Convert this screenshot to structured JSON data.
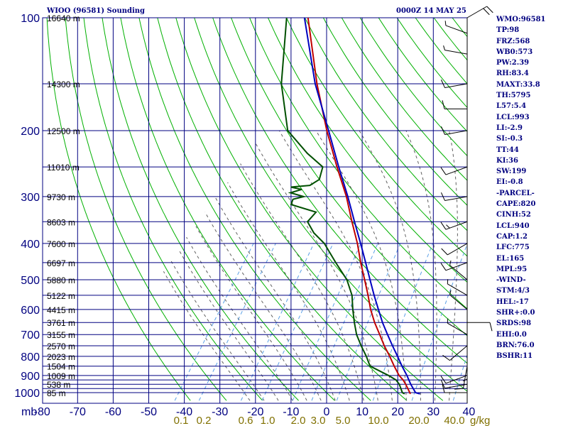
{
  "header": {
    "station": "WIOO (96581) Sounding",
    "time": "0000Z 14 MAY 25"
  },
  "stats": [
    "WMO:96581",
    "TP:98",
    "FRZ:568",
    "WB0:573",
    "PW:2.39",
    "RH:83.4",
    "MAXT:33.8",
    "TH:5795",
    "L57:5.4",
    "LCL:993",
    "LI:-2.9",
    "SI:-0.3",
    "TT:44",
    "KI:36",
    "SW:199",
    "EI:-0.8",
    "-PARCEL-",
    "CAPE:820",
    "CINH:52",
    "LCL:940",
    "CAP:1.2",
    "LFC:775",
    "EL:165",
    "MPL:95",
    "-WIND-",
    "STM:4/3",
    "HEL:-17",
    "SHR+:0.0",
    "SRDS:98",
    "EHI:0.0",
    "BRN:76.0",
    "BSHR:11"
  ],
  "colors": {
    "grid": "#000080",
    "dry_adiabat": "#00b000",
    "moist_adiabat": "#606060",
    "mixing_ratio": "#5aa0e6",
    "temperature": "#c00000",
    "dewpoint": "#005000",
    "parcel": "#0000c0",
    "label": "#000080",
    "mix_label": "#807000"
  },
  "chart_data": {
    "type": "line",
    "subtype": "skew-T log-P sounding",
    "x_axis": {
      "unit_label": "mb",
      "temperature_ticks": [
        -80,
        -70,
        -60,
        -50,
        -40,
        -30,
        -20,
        -10,
        0,
        10,
        20,
        30,
        40
      ],
      "temperature_labels": [
        "-80",
        "-70",
        "-60",
        "-50",
        "-40",
        "-30",
        "-20",
        "-10",
        "0",
        "10",
        "20",
        "30",
        "40"
      ],
      "range": [
        -80,
        40
      ]
    },
    "y_axis": {
      "scale": "log",
      "range_hPa": [
        1050,
        100
      ],
      "pressure_ticks": [
        100,
        200,
        300,
        400,
        500,
        600,
        700,
        800,
        900,
        1000
      ],
      "pressure_labels": [
        "100",
        "200",
        "300",
        "400",
        "500",
        "600",
        "700",
        "800",
        "900",
        "1000"
      ],
      "minor_levels": [
        150,
        250,
        350,
        450,
        550,
        650,
        750,
        850,
        925,
        950,
        975
      ]
    },
    "height_labels": [
      {
        "p": 100,
        "text": "16640 m"
      },
      {
        "p": 150,
        "text": "14300 m"
      },
      {
        "p": 200,
        "text": "12500 m"
      },
      {
        "p": 250,
        "text": "11010 m"
      },
      {
        "p": 300,
        "text": "9730 m"
      },
      {
        "p": 350,
        "text": "8603 m"
      },
      {
        "p": 400,
        "text": "7600 m"
      },
      {
        "p": 450,
        "text": "6697 m"
      },
      {
        "p": 500,
        "text": "5880 m"
      },
      {
        "p": 550,
        "text": "5122 m"
      },
      {
        "p": 600,
        "text": "4415 m"
      },
      {
        "p": 650,
        "text": "3761 m"
      },
      {
        "p": 700,
        "text": "3155 m"
      },
      {
        "p": 750,
        "text": "2570 m"
      },
      {
        "p": 800,
        "text": "2023 m"
      },
      {
        "p": 850,
        "text": "1504 m"
      },
      {
        "p": 900,
        "text": "1009 m"
      },
      {
        "p": 950,
        "text": "538 m"
      },
      {
        "p": 1000,
        "text": "85 m"
      }
    ],
    "mixing_ratio_labels": [
      "0.1",
      "0.2",
      "0.6",
      "1.0",
      "2.0",
      "3.0",
      "5.0",
      "10.0",
      "20.0",
      "40.0"
    ],
    "mixing_ratio_values": [
      0.1,
      0.2,
      0.6,
      1.0,
      2.0,
      3.0,
      5.0,
      10.0,
      20.0,
      40.0
    ],
    "mixing_ratio_unit": "g/kg",
    "series": [
      {
        "key": "temperature",
        "points": [
          [
            1008,
            23.8
          ],
          [
            1000,
            23.4
          ],
          [
            950,
            20.6
          ],
          [
            925,
            19.0
          ],
          [
            900,
            17.0
          ],
          [
            850,
            13.8
          ],
          [
            800,
            10.6
          ],
          [
            750,
            7.0
          ],
          [
            700,
            3.5
          ],
          [
            650,
            -0.3
          ],
          [
            600,
            -4.0
          ],
          [
            550,
            -7.5
          ],
          [
            500,
            -11.5
          ],
          [
            450,
            -16.0
          ],
          [
            400,
            -20.7
          ],
          [
            350,
            -26.5
          ],
          [
            300,
            -33.0
          ],
          [
            250,
            -41.5
          ],
          [
            200,
            -51.5
          ],
          [
            150,
            -63.5
          ],
          [
            100,
            -79.0
          ]
        ]
      },
      {
        "key": "dewpoint",
        "points": [
          [
            1008,
            22.2
          ],
          [
            1000,
            21.3
          ],
          [
            950,
            18.8
          ],
          [
            925,
            17.0
          ],
          [
            900,
            14.0
          ],
          [
            850,
            7.0
          ],
          [
            800,
            4.0
          ],
          [
            750,
            0.5
          ],
          [
            700,
            -3.0
          ],
          [
            650,
            -6.0
          ],
          [
            600,
            -9.0
          ],
          [
            550,
            -12.0
          ],
          [
            500,
            -16.5
          ],
          [
            450,
            -23.0
          ],
          [
            400,
            -30.0
          ],
          [
            375,
            -35.0
          ],
          [
            350,
            -39.0
          ],
          [
            330,
            -38.5
          ],
          [
            315,
            -47.0
          ],
          [
            305,
            -47.5
          ],
          [
            300,
            -45.0
          ],
          [
            293,
            -49.5
          ],
          [
            287,
            -47.0
          ],
          [
            283,
            -50.5
          ],
          [
            280,
            -45.5
          ],
          [
            270,
            -44.0
          ],
          [
            250,
            -45.5
          ],
          [
            230,
            -52.5
          ],
          [
            200,
            -62.5
          ],
          [
            150,
            -73.5
          ],
          [
            100,
            -85.0
          ]
        ]
      },
      {
        "key": "parcel",
        "points": [
          [
            1008,
            26.5
          ],
          [
            1000,
            25.0
          ],
          [
            950,
            22.0
          ],
          [
            900,
            19.2
          ],
          [
            850,
            16.0
          ],
          [
            800,
            12.8
          ],
          [
            750,
            9.3
          ],
          [
            700,
            5.7
          ],
          [
            650,
            1.9
          ],
          [
            600,
            -1.8
          ],
          [
            550,
            -5.8
          ],
          [
            500,
            -10.0
          ],
          [
            450,
            -14.6
          ],
          [
            400,
            -19.8
          ],
          [
            350,
            -25.8
          ],
          [
            300,
            -32.6
          ],
          [
            250,
            -41.0
          ],
          [
            200,
            -51.0
          ],
          [
            150,
            -64.0
          ],
          [
            100,
            -80.0
          ]
        ]
      }
    ],
    "wind_barbs": [
      {
        "p": 1000,
        "dir": 270,
        "kt": 10
      },
      {
        "p": 950,
        "dir": 260,
        "kt": 10
      },
      {
        "p": 900,
        "dir": 250,
        "kt": 10
      },
      {
        "p": 850,
        "dir": 190,
        "kt": 10
      },
      {
        "p": 800,
        "dir": 180,
        "kt": 5
      },
      {
        "p": 750,
        "dir": 230,
        "kt": 10
      },
      {
        "p": 700,
        "dir": 300,
        "kt": 5
      },
      {
        "p": 650,
        "dir": 90,
        "kt": 10
      },
      {
        "p": 600,
        "dir": 310,
        "kt": 5
      },
      {
        "p": 550,
        "dir": 300,
        "kt": 5
      },
      {
        "p": 500,
        "dir": 310,
        "kt": 5
      },
      {
        "p": 450,
        "dir": 250,
        "kt": 10
      },
      {
        "p": 400,
        "dir": 240,
        "kt": 10
      },
      {
        "p": 350,
        "dir": 250,
        "kt": 15
      },
      {
        "p": 300,
        "dir": 260,
        "kt": 10
      },
      {
        "p": 250,
        "dir": 250,
        "kt": 10
      },
      {
        "p": 200,
        "dir": 260,
        "kt": 10
      },
      {
        "p": 175,
        "dir": 270,
        "kt": 10
      },
      {
        "p": 150,
        "dir": 260,
        "kt": 10
      },
      {
        "p": 125,
        "dir": 280,
        "kt": 5
      },
      {
        "p": 110,
        "dir": 290,
        "kt": 5
      },
      {
        "p": 100,
        "dir": 60,
        "kt": 20
      }
    ]
  }
}
